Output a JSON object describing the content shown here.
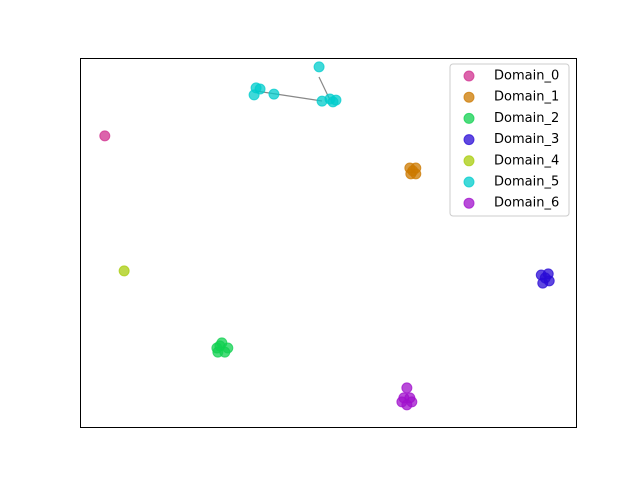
{
  "chart_data": {
    "type": "scatter",
    "legend": "upper right",
    "xlim": [
      0,
      100
    ],
    "ylim": [
      0,
      100
    ],
    "series": [
      {
        "name": "Domain_0",
        "color": "#d0308f",
        "x": [
          5.0
        ],
        "values": [
          78.9
        ]
      },
      {
        "name": "Domain_1",
        "color": "#cc7a00",
        "x": [
          67.1,
          66.5,
          67.7,
          66.7,
          67.7
        ],
        "values": [
          69.4,
          70.2,
          68.6,
          68.6,
          70.2
        ]
      },
      {
        "name": "Domain_2",
        "color": "#10d050",
        "x": [
          28.6,
          27.8,
          29.8,
          29.2,
          28.2,
          27.6
        ],
        "values": [
          22.8,
          20.3,
          21.4,
          20.3,
          22.0,
          21.4
        ]
      },
      {
        "name": "Domain_3",
        "color": "#2a0bd6",
        "x": [
          93.8,
          93.0,
          94.6,
          93.3,
          94.4
        ],
        "values": [
          40.4,
          41.2,
          39.6,
          39.0,
          41.5
        ]
      },
      {
        "name": "Domain_4",
        "color": "#a8cc0c",
        "x": [
          8.9
        ],
        "values": [
          42.3
        ]
      },
      {
        "name": "Domain_5",
        "color": "#00cccc",
        "x": [
          35.5,
          35.1,
          36.3,
          39.1,
          48.2,
          48.8,
          51.0,
          50.4,
          51.6
        ],
        "values": [
          91.9,
          90.0,
          91.6,
          90.2,
          97.6,
          88.3,
          88.1,
          88.9,
          88.6
        ]
      },
      {
        "name": "Domain_6",
        "color": "#a010cc",
        "x": [
          65.9,
          65.3,
          66.5,
          65.9,
          64.9,
          66.9
        ],
        "values": [
          10.6,
          7.9,
          7.9,
          6.0,
          6.8,
          6.8
        ]
      }
    ]
  }
}
